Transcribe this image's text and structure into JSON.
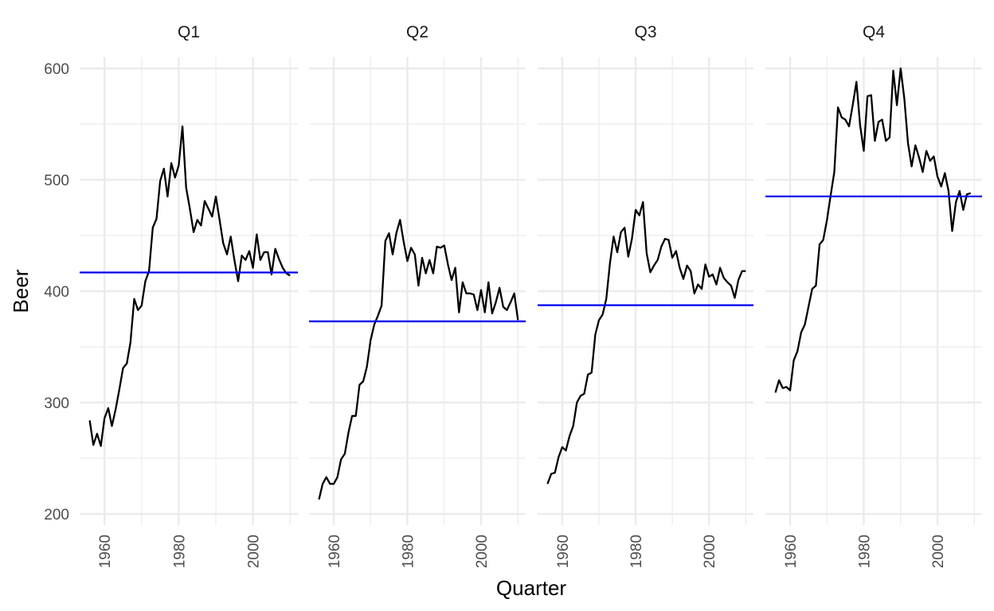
{
  "chart_data": {
    "type": "line",
    "xlabel": "Quarter",
    "ylabel": "Beer",
    "ylim": [
      196,
      604
    ],
    "y_ticks": [
      200,
      300,
      400,
      500,
      600
    ],
    "x_ticks": [
      1960,
      1980,
      2000
    ],
    "xlim": [
      1953.3,
      2012.1
    ],
    "grid": true,
    "legend": "none",
    "colors": {
      "series": "#000000",
      "mean_line": "#0000ee",
      "grid": "#ebebeb"
    },
    "facets": [
      {
        "label": "Q1",
        "mean": 416.8,
        "x": [
          1956,
          1957,
          1958,
          1959,
          1960,
          1961,
          1962,
          1963,
          1964,
          1965,
          1966,
          1967,
          1968,
          1969,
          1970,
          1971,
          1972,
          1973,
          1974,
          1975,
          1976,
          1977,
          1978,
          1979,
          1980,
          1981,
          1982,
          1983,
          1984,
          1985,
          1986,
          1987,
          1988,
          1989,
          1990,
          1991,
          1992,
          1993,
          1994,
          1995,
          1996,
          1997,
          1998,
          1999,
          2000,
          2001,
          2002,
          2003,
          2004,
          2005,
          2006,
          2007,
          2008,
          2009,
          2010
        ],
        "y": [
          284,
          262,
          272,
          261,
          286,
          295,
          279,
          294,
          312,
          331,
          335,
          354,
          393,
          383,
          387,
          409,
          418,
          457,
          465,
          499,
          510,
          485,
          515,
          502,
          513,
          548,
          493,
          474,
          453,
          464,
          459,
          481,
          474,
          467,
          485,
          464,
          443,
          433,
          449,
          428,
          409,
          432,
          428,
          436,
          421,
          451,
          428,
          435,
          435,
          415,
          438,
          429,
          421,
          416,
          414
        ]
      },
      {
        "label": "Q2",
        "mean": 372.9,
        "x": [
          1956,
          1957,
          1958,
          1959,
          1960,
          1961,
          1962,
          1963,
          1964,
          1965,
          1966,
          1967,
          1968,
          1969,
          1970,
          1971,
          1972,
          1973,
          1974,
          1975,
          1976,
          1977,
          1978,
          1979,
          1980,
          1981,
          1982,
          1983,
          1984,
          1985,
          1986,
          1987,
          1988,
          1989,
          1990,
          1991,
          1992,
          1993,
          1994,
          1995,
          1996,
          1997,
          1998,
          1999,
          2000,
          2001,
          2002,
          2003,
          2004,
          2005,
          2006,
          2007,
          2008,
          2009,
          2010
        ],
        "y": [
          213,
          227,
          233,
          227,
          227,
          233,
          249,
          254,
          273,
          288,
          288,
          316,
          319,
          332,
          356,
          370,
          378,
          387,
          445,
          452,
          433,
          452,
          464,
          444,
          427,
          439,
          433,
          405,
          430,
          416,
          428,
          416,
          440,
          439,
          441,
          424,
          410,
          421,
          381,
          408,
          398,
          398,
          397,
          383,
          401,
          381,
          408,
          380,
          390,
          403,
          386,
          383,
          390,
          398,
          374
        ]
      },
      {
        "label": "Q3",
        "mean": 387.4,
        "x": [
          1956,
          1957,
          1958,
          1959,
          1960,
          1961,
          1962,
          1963,
          1964,
          1965,
          1966,
          1967,
          1968,
          1969,
          1970,
          1971,
          1972,
          1973,
          1974,
          1975,
          1976,
          1977,
          1978,
          1979,
          1980,
          1981,
          1982,
          1983,
          1984,
          1985,
          1986,
          1987,
          1988,
          1989,
          1990,
          1991,
          1992,
          1993,
          1994,
          1995,
          1996,
          1997,
          1998,
          1999,
          2000,
          2001,
          2002,
          2003,
          2004,
          2005,
          2006,
          2007,
          2008,
          2009,
          2010
        ],
        "y": [
          227,
          236,
          237,
          251,
          260,
          257,
          270,
          279,
          300,
          306,
          308,
          325,
          327,
          361,
          374,
          379,
          393,
          425,
          449,
          435,
          453,
          457,
          431,
          447,
          473,
          468,
          480,
          434,
          417,
          423,
          428,
          440,
          447,
          446,
          430,
          436,
          421,
          411,
          423,
          418,
          398,
          406,
          402,
          424,
          413,
          415,
          406,
          421,
          412,
          408,
          405,
          394,
          410,
          418,
          418
        ]
      },
      {
        "label": "Q4",
        "mean": 485.1,
        "x": [
          1956,
          1957,
          1958,
          1959,
          1960,
          1961,
          1962,
          1963,
          1964,
          1965,
          1966,
          1967,
          1968,
          1969,
          1970,
          1971,
          1972,
          1973,
          1974,
          1975,
          1976,
          1977,
          1978,
          1979,
          1980,
          1981,
          1982,
          1983,
          1984,
          1985,
          1986,
          1987,
          1988,
          1989,
          1990,
          1991,
          1992,
          1993,
          1994,
          1995,
          1996,
          1997,
          1998,
          1999,
          2000,
          2001,
          2002,
          2003,
          2004,
          2005,
          2006,
          2007,
          2008,
          2009
        ],
        "y": [
          309,
          320,
          313,
          314,
          311,
          338,
          346,
          363,
          370,
          386,
          402,
          405,
          442,
          446,
          464,
          486,
          507,
          565,
          556,
          554,
          548,
          567,
          588,
          549,
          526,
          575,
          576,
          535,
          552,
          554,
          535,
          538,
          598,
          567,
          600,
          573,
          533,
          512,
          531,
          520,
          507,
          526,
          517,
          521,
          503,
          494,
          506,
          490,
          454,
          480,
          490,
          473,
          487,
          488
        ]
      }
    ]
  }
}
